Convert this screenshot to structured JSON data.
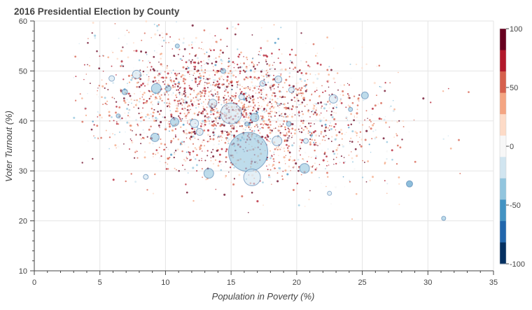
{
  "chart_data": {
    "type": "scatter",
    "title": "2016 Presidential Election by County",
    "xlabel": "Population in Poverty (%)",
    "ylabel": "Voter Turnout (%)",
    "xlim": [
      0,
      35
    ],
    "ylim": [
      10,
      60
    ],
    "x_ticks": [
      0,
      5,
      10,
      15,
      20,
      25,
      30,
      35
    ],
    "y_ticks": [
      10,
      20,
      30,
      40,
      50,
      60
    ],
    "grid": true,
    "colorbar": {
      "range": [
        -100,
        100
      ],
      "ticks": [
        100,
        50,
        0,
        -50,
        -100
      ],
      "colors": [
        "#053061",
        "#2166ac",
        "#4393c3",
        "#92c5de",
        "#d1e5f0",
        "#f7f7f7",
        "#fddbc7",
        "#f4a582",
        "#d6604d",
        "#b2182b",
        "#67001f"
      ]
    },
    "highlighted_points": [
      {
        "x": 16.3,
        "y": 33.8,
        "value": -30,
        "size": 28
      },
      {
        "x": 15.0,
        "y": 41.5,
        "value": -25,
        "size": 15
      },
      {
        "x": 16.6,
        "y": 28.7,
        "value": -12,
        "size": 12
      },
      {
        "x": 13.3,
        "y": 29.5,
        "value": -40,
        "size": 7
      },
      {
        "x": 20.6,
        "y": 30.5,
        "value": -40,
        "size": 7
      },
      {
        "x": 9.3,
        "y": 46.5,
        "value": -35,
        "size": 7
      },
      {
        "x": 9.2,
        "y": 36.7,
        "value": -40,
        "size": 6
      },
      {
        "x": 10.7,
        "y": 39.8,
        "value": -45,
        "size": 6
      },
      {
        "x": 16.8,
        "y": 40.7,
        "value": -45,
        "size": 6
      },
      {
        "x": 25.2,
        "y": 45.1,
        "value": -45,
        "size": 5
      },
      {
        "x": 28.6,
        "y": 27.4,
        "value": -50,
        "size": 4.5
      },
      {
        "x": 7.8,
        "y": 49.3,
        "value": -15,
        "size": 6
      },
      {
        "x": 13.6,
        "y": 43.5,
        "value": -20,
        "size": 6
      },
      {
        "x": 18.5,
        "y": 36.0,
        "value": -20,
        "size": 7
      },
      {
        "x": 12.2,
        "y": 39.5,
        "value": -15,
        "size": 6
      },
      {
        "x": 22.8,
        "y": 44.4,
        "value": -20,
        "size": 6
      },
      {
        "x": 18.6,
        "y": 48.3,
        "value": -20,
        "size": 5
      },
      {
        "x": 6.9,
        "y": 45.8,
        "value": -40,
        "size": 4
      },
      {
        "x": 10.2,
        "y": 46.5,
        "value": -40,
        "size": 4
      },
      {
        "x": 12.6,
        "y": 37.8,
        "value": -20,
        "size": 5
      },
      {
        "x": 14.4,
        "y": 50.0,
        "value": -30,
        "size": 3.5
      },
      {
        "x": 19.6,
        "y": 46.2,
        "value": -20,
        "size": 4
      },
      {
        "x": 22.5,
        "y": 25.5,
        "value": -25,
        "size": 3
      },
      {
        "x": 31.2,
        "y": 20.5,
        "value": -30,
        "size": 3
      },
      {
        "x": 6.4,
        "y": 41.0,
        "value": -40,
        "size": 3
      },
      {
        "x": 8.5,
        "y": 28.8,
        "value": -25,
        "size": 3.5
      },
      {
        "x": 20.7,
        "y": 36.0,
        "value": -25,
        "size": 3.5
      },
      {
        "x": 5.9,
        "y": 48.5,
        "value": -15,
        "size": 4
      },
      {
        "x": 10.9,
        "y": 55.0,
        "value": -30,
        "size": 3
      },
      {
        "x": 24.1,
        "y": 42.3,
        "value": -45,
        "size": 3
      },
      {
        "x": 16.2,
        "y": 39.4,
        "value": -45,
        "size": 3
      },
      {
        "x": 19.4,
        "y": 39.4,
        "value": -40,
        "size": 3.5
      },
      {
        "x": 17.4,
        "y": 47.5,
        "value": -20,
        "size": 4
      },
      {
        "x": 15.8,
        "y": 44.8,
        "value": -25,
        "size": 4
      }
    ],
    "background_points": {
      "count": 2600,
      "x_center": 15,
      "x_spread": 5.5,
      "x_range": [
        3,
        35
      ],
      "y_center": 42,
      "y_spread": 7,
      "y_range": [
        18,
        60
      ],
      "value_center": 50,
      "value_spread": 35
    }
  }
}
